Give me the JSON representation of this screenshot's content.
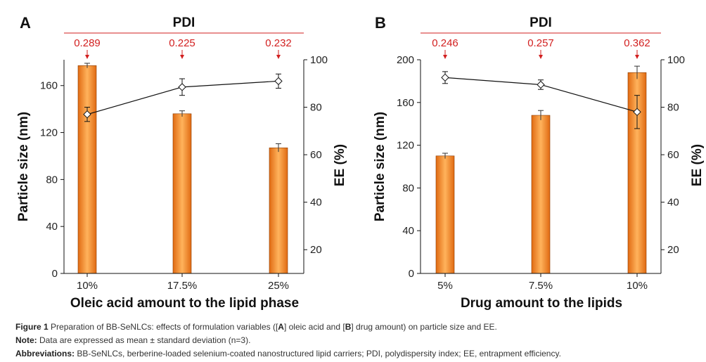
{
  "caption": {
    "fig_label": "Figure 1",
    "fig_text_1": "Preparation of BB-SeNLCs: effects of formulation variables ([",
    "fig_a": "A",
    "fig_text_2": "] oleic acid and [",
    "fig_b": "B",
    "fig_text_3": "] drug amount) on particle size and EE.",
    "note_label": "Note:",
    "note_text": "Data are expressed as mean ± standard deviation (n=3).",
    "abbr_label": "Abbreviations:",
    "abbr_text": "BB-SeNLCs, berberine-loaded selenium-coated nanostructured lipid carriers; PDI, polydispersity index; EE, entrapment efficiency."
  },
  "colors": {
    "bar": "#f08a2a",
    "bar_edge": "#8a3a00",
    "pdi": "#d21f1f",
    "line": "#111111"
  },
  "chart_data": [
    {
      "type": "bar+line",
      "panel": "A",
      "pdi_title": "PDI",
      "pdi": [
        "0.289",
        "0.225",
        "0.232"
      ],
      "categories": [
        "10%",
        "17.5%",
        "25%"
      ],
      "xlabel": "Oleic acid amount to the lipid phase",
      "ylabel": "Particle size (nm)",
      "ylabel_right": "EE (%)",
      "ylim": [
        0,
        182
      ],
      "yticks": [
        0,
        40,
        80,
        120,
        160
      ],
      "ylim_right": [
        10,
        100
      ],
      "yticks_right": [
        20,
        40,
        60,
        80,
        100
      ],
      "series": [
        {
          "name": "Particle size (nm)",
          "kind": "bar",
          "values": [
            177,
            136,
            107
          ],
          "err": [
            2,
            2.5,
            3.5
          ]
        },
        {
          "name": "EE (%)",
          "kind": "line",
          "values": [
            77,
            88.5,
            91
          ],
          "err": [
            3,
            3.5,
            3
          ]
        }
      ]
    },
    {
      "type": "bar+line",
      "panel": "B",
      "pdi_title": "PDI",
      "pdi": [
        "0.246",
        "0.257",
        "0.362"
      ],
      "categories": [
        "5%",
        "7.5%",
        "10%"
      ],
      "xlabel": "Drug amount to the lipids",
      "ylabel": "Particle size (nm)",
      "ylabel_right": "EE (%)",
      "ylim": [
        0,
        200
      ],
      "yticks": [
        0,
        40,
        80,
        120,
        160,
        200
      ],
      "ylim_right": [
        10,
        100
      ],
      "yticks_right": [
        20,
        40,
        60,
        80,
        100
      ],
      "series": [
        {
          "name": "Particle size (nm)",
          "kind": "bar",
          "values": [
            110,
            148,
            188
          ],
          "err": [
            2.5,
            4.5,
            6
          ]
        },
        {
          "name": "EE (%)",
          "kind": "line",
          "values": [
            92.5,
            89.5,
            78
          ],
          "err": [
            2.5,
            2,
            7
          ]
        }
      ]
    }
  ]
}
